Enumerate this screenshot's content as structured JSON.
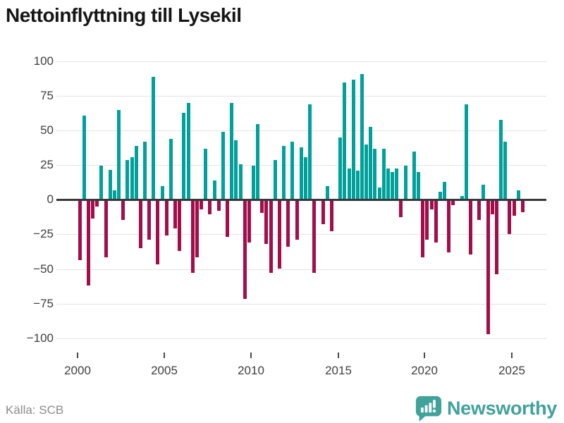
{
  "title": "Nettoinflyttning till Lysekil",
  "source": "Källa: SCB",
  "brand": {
    "name": "Newsworthy",
    "icon": "newsworthy-speech-bubble-bar-chart-icon"
  },
  "colors": {
    "positive_bar": "#00a09b",
    "negative_bar": "#a30d4a",
    "zero_axis": "#37383a",
    "grid": "#e4e4e4",
    "axis_text": "#3f3f3f",
    "muted_text": "#8b8b8b",
    "title_text": "#161616",
    "brand_teal": "#3fa29b"
  },
  "chart_data": {
    "type": "bar",
    "title": "Nettoinflyttning till Lysekil",
    "xlabel": "",
    "ylabel": "",
    "frequency": "quarterly",
    "start": "2000Q1",
    "end": "2025Q3",
    "ylim": [
      -100,
      100
    ],
    "grid": true,
    "legend": false,
    "x_tick_labels": [
      "2000",
      "2005",
      "2010",
      "2015",
      "2020",
      "2025"
    ],
    "y_tick_values": [
      100,
      75,
      50,
      25,
      0,
      -25,
      -50,
      -75,
      -100
    ],
    "y_tick_labels": [
      "100",
      "75",
      "50",
      "25",
      "0",
      "−25",
      "−50",
      "−75",
      "−100"
    ],
    "series": [
      {
        "name": "Nettoinflyttning",
        "values": [
          -43,
          60,
          -61,
          -13,
          -4,
          24,
          -41,
          21,
          6,
          64,
          -14,
          28,
          30,
          38,
          -34,
          41,
          -28,
          88,
          -46,
          9,
          -25,
          43,
          -20,
          -36,
          62,
          69,
          -52,
          -41,
          -6,
          36,
          -10,
          13,
          -7,
          48,
          -26,
          69,
          42,
          25,
          -71,
          -30,
          24,
          54,
          -9,
          -31,
          -52,
          28,
          -49,
          38,
          -33,
          41,
          -28,
          37,
          30,
          68,
          -52,
          0,
          -17,
          9,
          -22,
          0,
          44,
          84,
          22,
          86,
          20,
          90,
          39,
          52,
          36,
          8,
          36,
          22,
          19,
          22,
          -12,
          24,
          0,
          34,
          19,
          -41,
          -28,
          -6,
          -30,
          5,
          12,
          -37,
          -3,
          0,
          2,
          68,
          -39,
          0,
          -14,
          10,
          -96,
          -10,
          -53,
          57,
          41,
          -24,
          -11,
          6,
          -8
        ]
      }
    ]
  }
}
